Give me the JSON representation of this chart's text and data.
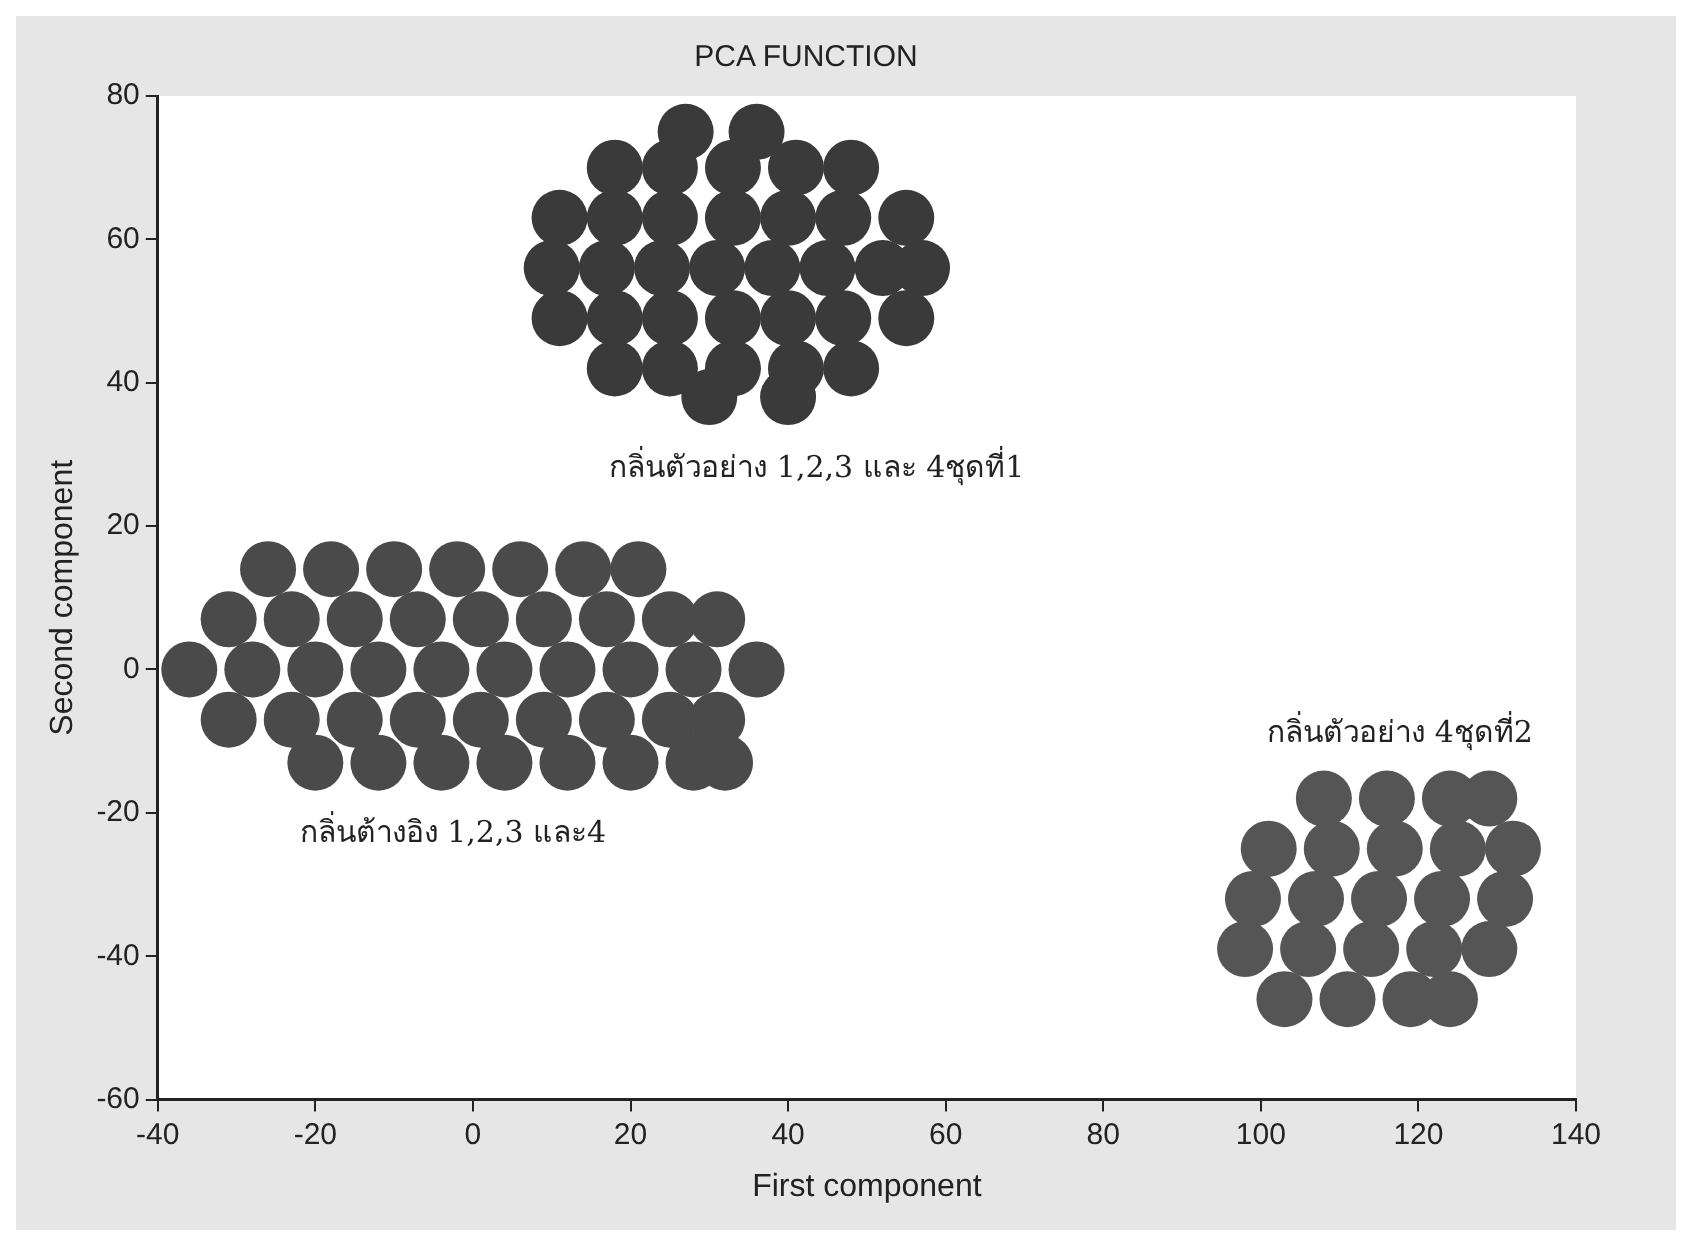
{
  "chart_data": {
    "type": "scatter",
    "title": "PCA FUNCTION",
    "xlabel": "First component",
    "ylabel": "Second component",
    "xlim": [
      -40,
      140
    ],
    "xticks": [
      -40,
      -20,
      0,
      20,
      40,
      60,
      80,
      100,
      120,
      140
    ],
    "ylim": [
      -60,
      80
    ],
    "yticks": [
      -60,
      -40,
      -20,
      0,
      20,
      40,
      60,
      80
    ],
    "grid": false,
    "legend": false,
    "marker": "circle",
    "series": [
      {
        "color": "#3a3a3a",
        "x": [
          10,
          17,
          24,
          31,
          38,
          45,
          52,
          57,
          11,
          18,
          25,
          33,
          40,
          47,
          55,
          11,
          18,
          25,
          33,
          40,
          47,
          55,
          18,
          25,
          33,
          41,
          48,
          18,
          25,
          33,
          41,
          48,
          27,
          36,
          30,
          40
        ],
        "values": [
          56,
          56,
          56,
          56,
          56,
          56,
          56,
          56,
          63,
          63,
          63,
          63,
          63,
          63,
          63,
          49,
          49,
          49,
          49,
          49,
          49,
          49,
          70,
          70,
          70,
          70,
          70,
          42,
          42,
          42,
          42,
          42,
          75,
          75,
          38,
          38
        ]
      },
      {
        "color": "#4a4a4a",
        "x": [
          -36,
          -28,
          -20,
          -12,
          -4,
          4,
          12,
          20,
          28,
          36,
          -31,
          -23,
          -15,
          -7,
          1,
          9,
          17,
          25,
          31,
          -31,
          -23,
          -15,
          -7,
          1,
          9,
          17,
          25,
          31,
          -26,
          -18,
          -10,
          -2,
          6,
          14,
          21,
          -20,
          -12,
          -4,
          4,
          12,
          20,
          28,
          32
        ],
        "values": [
          0,
          0,
          0,
          0,
          0,
          0,
          0,
          0,
          0,
          0,
          7,
          7,
          7,
          7,
          7,
          7,
          7,
          7,
          7,
          -7,
          -7,
          -7,
          -7,
          -7,
          -7,
          -7,
          -7,
          -7,
          14,
          14,
          14,
          14,
          14,
          14,
          14,
          -13,
          -13,
          -13,
          -13,
          -13,
          -13,
          -13,
          -13
        ]
      },
      {
        "color": "#555555",
        "x": [
          99,
          107,
          115,
          123,
          131,
          101,
          109,
          117,
          125,
          132,
          108,
          116,
          124,
          129,
          98,
          106,
          114,
          122,
          129,
          103,
          111,
          119,
          124
        ],
        "values": [
          -32,
          -32,
          -32,
          -32,
          -32,
          -25,
          -25,
          -25,
          -25,
          -25,
          -18,
          -18,
          -18,
          -18,
          -39,
          -39,
          -39,
          -39,
          -39,
          -46,
          -46,
          -46,
          -46
        ]
      }
    ],
    "annotations": [
      "กลิ่นตัวอย่าง 1,2,3 และ 4ชุดที่1",
      "กลิ่นต้างอิง 1,2,3 และ4",
      "กลิ่นตัวอย่าง 4ชุดที่2"
    ]
  }
}
